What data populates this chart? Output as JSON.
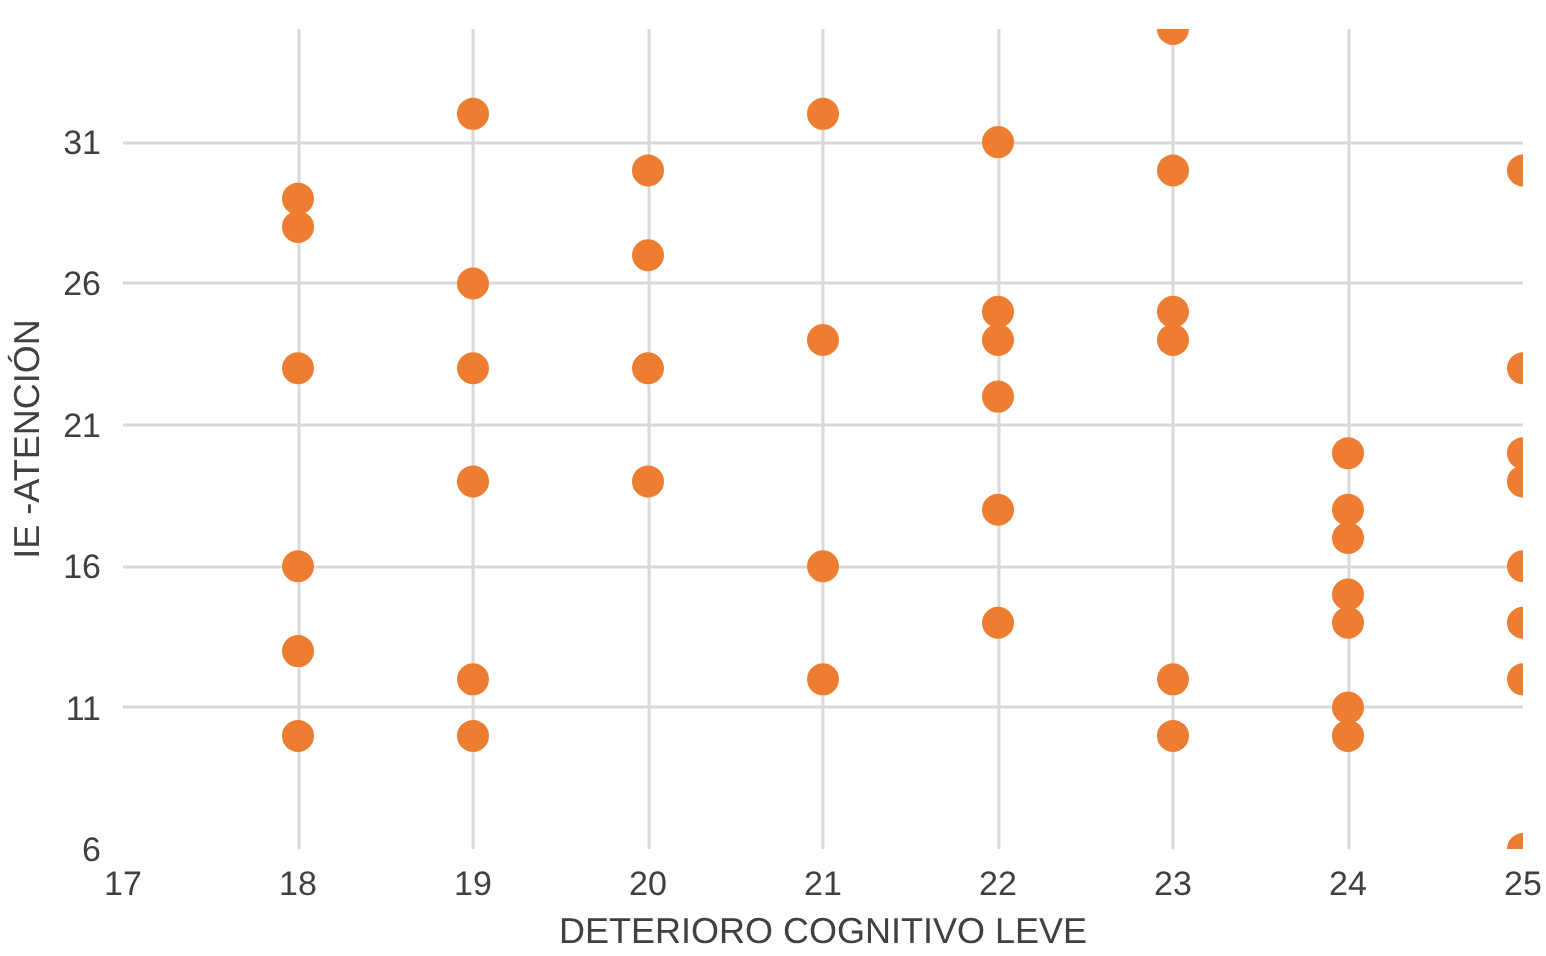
{
  "chart_data": {
    "type": "scatter",
    "xlabel": "DETERIORO COGNITIVO LEVE",
    "ylabel": "IE -ATENCIÓN",
    "x": [
      18,
      18,
      18,
      18,
      18,
      18,
      19,
      19,
      19,
      19,
      19,
      19,
      20,
      20,
      20,
      20,
      21,
      21,
      21,
      21,
      22,
      22,
      22,
      22,
      22,
      22,
      23,
      23,
      23,
      23,
      23,
      23,
      24,
      24,
      24,
      24,
      24,
      24,
      24,
      25,
      25,
      25,
      25,
      25,
      25,
      25,
      25
    ],
    "values": [
      29,
      28,
      23,
      16,
      13,
      10,
      32,
      26,
      23,
      19,
      12,
      10,
      30,
      27,
      23,
      19,
      32,
      24,
      16,
      12,
      31,
      25,
      24,
      22,
      18,
      14,
      35,
      30,
      25,
      24,
      12,
      10,
      20,
      18,
      17,
      15,
      14,
      11,
      10,
      30,
      23,
      20,
      19,
      16,
      14,
      12,
      6
    ],
    "color": "#ed7d31",
    "marker": "circle",
    "grid": true,
    "xlim": [
      17,
      25
    ],
    "xticks": [
      17,
      18,
      19,
      20,
      21,
      22,
      23,
      24,
      25
    ],
    "ylim": [
      6,
      35
    ],
    "yticks": [
      6,
      11,
      16,
      21,
      26,
      31
    ]
  }
}
